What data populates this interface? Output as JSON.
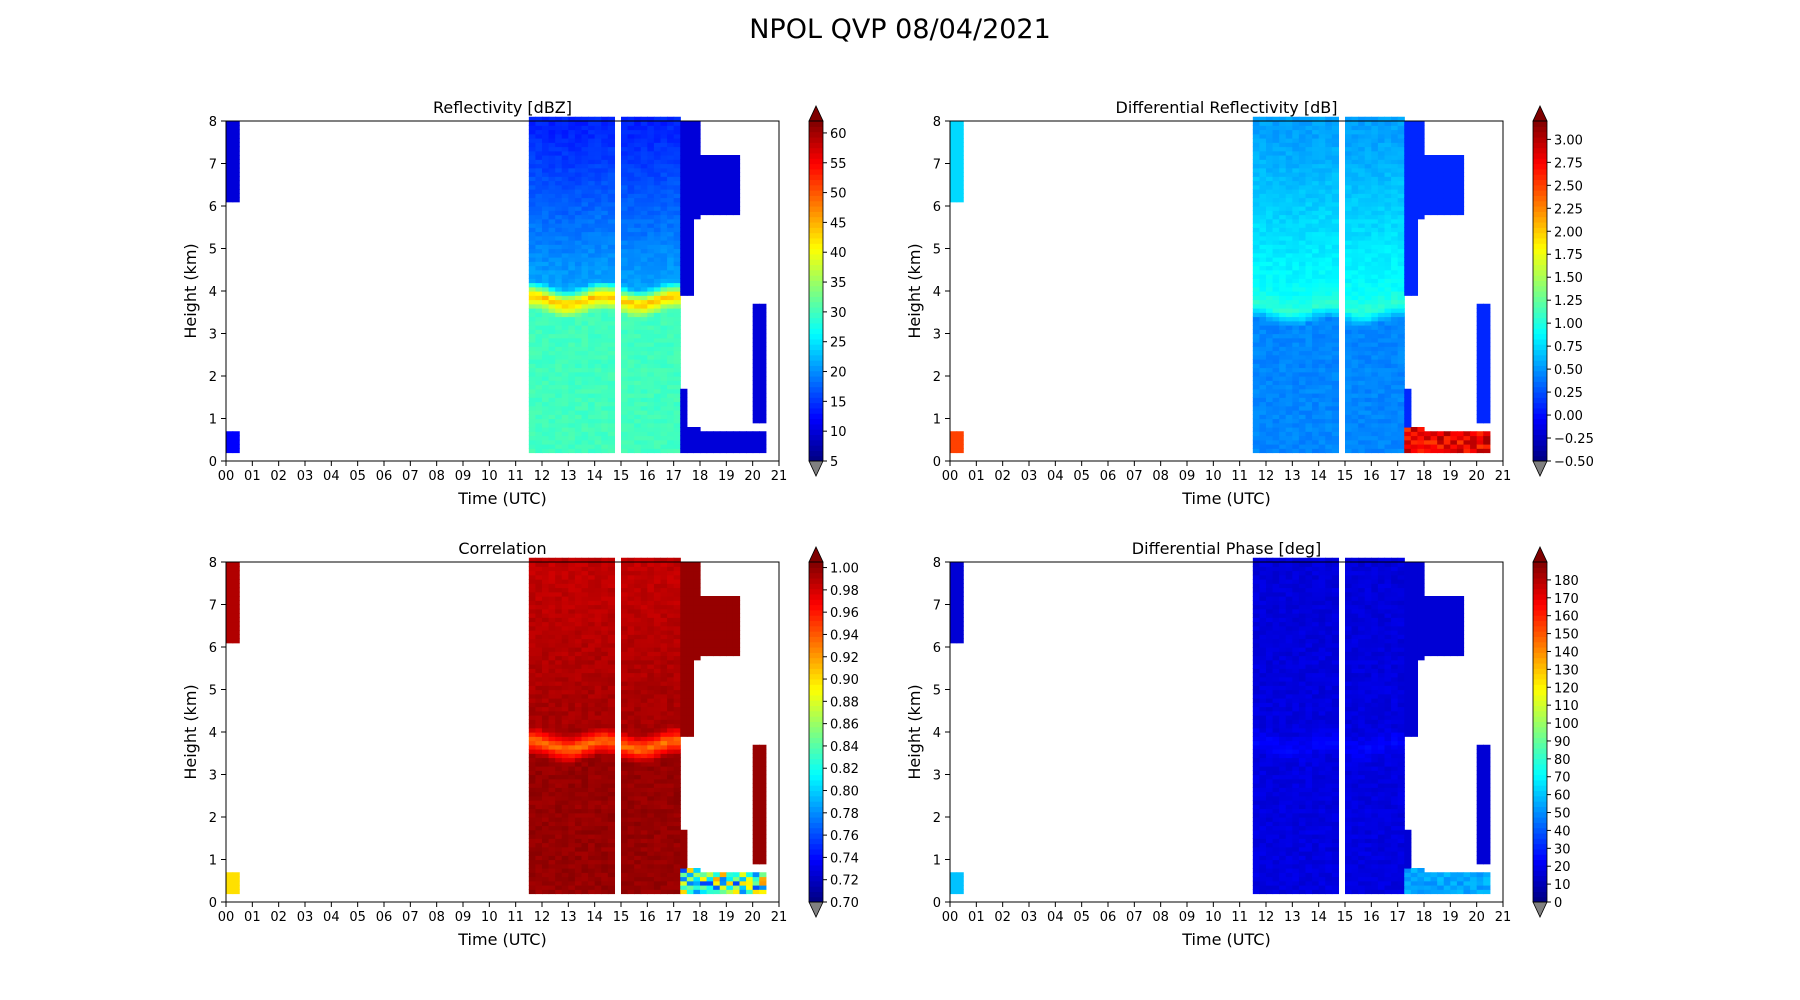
{
  "figure": {
    "title": "NPOL QVP 08/04/2021"
  },
  "colors": {
    "bg": "#ffffff",
    "under": "#808080",
    "gap": "#ffffff",
    "jet_stops": [
      "#00007f",
      "#0000ff",
      "#007fff",
      "#00ffff",
      "#7fff7f",
      "#ffff00",
      "#ff7f00",
      "#ff0000",
      "#7f0000"
    ]
  },
  "chart_data": [
    {
      "id": "reflectivity",
      "type": "heatmap",
      "title": "Reflectivity [dBZ]",
      "xlabel": "Time (UTC)",
      "ylabel": "Height (km)",
      "xlim": [
        0,
        21
      ],
      "ylim": [
        0,
        8
      ],
      "xticks": [
        "00",
        "01",
        "02",
        "03",
        "04",
        "05",
        "06",
        "07",
        "08",
        "09",
        "10",
        "11",
        "12",
        "13",
        "14",
        "15",
        "16",
        "17",
        "18",
        "19",
        "20",
        "21"
      ],
      "yticks": [
        "0",
        "1",
        "2",
        "3",
        "4",
        "5",
        "6",
        "7",
        "8"
      ],
      "colorbar": {
        "vmin": 5,
        "vmax": 62,
        "ticks": [
          5,
          10,
          15,
          20,
          25,
          30,
          35,
          40,
          45,
          50,
          55,
          60
        ],
        "tick_labels": [
          "5",
          "10",
          "15",
          "20",
          "25",
          "30",
          "35",
          "40",
          "45",
          "50",
          "55",
          "60"
        ],
        "extend": "both"
      },
      "profile": {
        "mode": "mix",
        "upper_values": [
          14,
          16,
          22
        ],
        "bright_band_value": 45,
        "bright_band_center_km": 3.8,
        "lower_value": 30,
        "late_value": 10,
        "early_top_value": 10,
        "early_bottom_value": 12
      }
    },
    {
      "id": "differential_reflectivity",
      "type": "heatmap",
      "title": "Differential Reflectivity [dB]",
      "xlabel": "Time (UTC)",
      "ylabel": "Height (km)",
      "xlim": [
        0,
        21
      ],
      "ylim": [
        0,
        8
      ],
      "xticks": [
        "00",
        "01",
        "02",
        "03",
        "04",
        "05",
        "06",
        "07",
        "08",
        "09",
        "10",
        "11",
        "12",
        "13",
        "14",
        "15",
        "16",
        "17",
        "18",
        "19",
        "20",
        "21"
      ],
      "yticks": [
        "0",
        "1",
        "2",
        "3",
        "4",
        "5",
        "6",
        "7",
        "8"
      ],
      "colorbar": {
        "vmin": -0.5,
        "vmax": 3.2,
        "ticks": [
          -0.5,
          -0.25,
          0.0,
          0.25,
          0.5,
          0.75,
          1.0,
          1.25,
          1.5,
          1.75,
          2.0,
          2.25,
          2.5,
          2.75,
          3.0
        ],
        "tick_labels": [
          "−0.50",
          "−0.25",
          "0.00",
          "0.25",
          "0.50",
          "0.75",
          "1.00",
          "1.25",
          "1.50",
          "1.75",
          "2.00",
          "2.25",
          "2.50",
          "2.75",
          "3.00"
        ],
        "extend": "both"
      },
      "profile": {
        "mode": "mix",
        "upper_values": [
          0.55,
          0.75,
          0.95
        ],
        "bright_band_value": 1.05,
        "bright_band_center_km": 3.6,
        "lower_value": 0.45,
        "late_value": 0.1,
        "near_surface_late_value": 2.8,
        "early_top_value": 0.75,
        "early_bottom_value": 2.5
      }
    },
    {
      "id": "correlation",
      "type": "heatmap",
      "title": "Correlation",
      "xlabel": "Time (UTC)",
      "ylabel": "Height (km)",
      "xlim": [
        0,
        21
      ],
      "ylim": [
        0,
        8
      ],
      "xticks": [
        "00",
        "01",
        "02",
        "03",
        "04",
        "05",
        "06",
        "07",
        "08",
        "09",
        "10",
        "11",
        "12",
        "13",
        "14",
        "15",
        "16",
        "17",
        "18",
        "19",
        "20",
        "21"
      ],
      "yticks": [
        "0",
        "1",
        "2",
        "3",
        "4",
        "5",
        "6",
        "7",
        "8"
      ],
      "colorbar": {
        "vmin": 0.7,
        "vmax": 1.005,
        "ticks": [
          0.7,
          0.72,
          0.74,
          0.76,
          0.78,
          0.8,
          0.82,
          0.84,
          0.86,
          0.88,
          0.9,
          0.92,
          0.94,
          0.96,
          0.98,
          1.0
        ],
        "tick_labels": [
          "0.70",
          "0.72",
          "0.74",
          "0.76",
          "0.78",
          "0.80",
          "0.82",
          "0.84",
          "0.86",
          "0.88",
          "0.90",
          "0.92",
          "0.94",
          "0.96",
          "0.98",
          "1.00"
        ],
        "extend": "both"
      },
      "profile": {
        "mode": "min",
        "upper_values": [
          0.985,
          0.99,
          0.995
        ],
        "bright_band_value": 0.93,
        "bright_band_center_km": 3.7,
        "lower_value": 0.998,
        "late_value": 0.998,
        "near_surface_late_value": 0.84,
        "early_top_value": 0.99,
        "early_bottom_value": 0.9
      }
    },
    {
      "id": "differential_phase",
      "type": "heatmap",
      "title": "Differential Phase [deg]",
      "xlabel": "Time (UTC)",
      "ylabel": "Height (km)",
      "xlim": [
        0,
        21
      ],
      "ylim": [
        0,
        8
      ],
      "xticks": [
        "00",
        "01",
        "02",
        "03",
        "04",
        "05",
        "06",
        "07",
        "08",
        "09",
        "10",
        "11",
        "12",
        "13",
        "14",
        "15",
        "16",
        "17",
        "18",
        "19",
        "20",
        "21"
      ],
      "yticks": [
        "0",
        "1",
        "2",
        "3",
        "4",
        "5",
        "6",
        "7",
        "8"
      ],
      "colorbar": {
        "vmin": 0,
        "vmax": 190,
        "ticks": [
          0,
          10,
          20,
          30,
          40,
          50,
          60,
          70,
          80,
          90,
          100,
          110,
          120,
          130,
          140,
          150,
          160,
          170,
          180
        ],
        "tick_labels": [
          "0",
          "10",
          "20",
          "30",
          "40",
          "50",
          "60",
          "70",
          "80",
          "90",
          "100",
          "110",
          "120",
          "130",
          "140",
          "150",
          "160",
          "170",
          "180"
        ],
        "extend": "both"
      },
      "profile": {
        "mode": "max",
        "upper_values": [
          17,
          17,
          18
        ],
        "bright_band_value": 24,
        "bright_band_center_km": 3.7,
        "lower_value": 18,
        "late_value": 16,
        "near_surface_late_value": 55,
        "early_top_value": 16,
        "early_bottom_value": 60
      }
    }
  ]
}
